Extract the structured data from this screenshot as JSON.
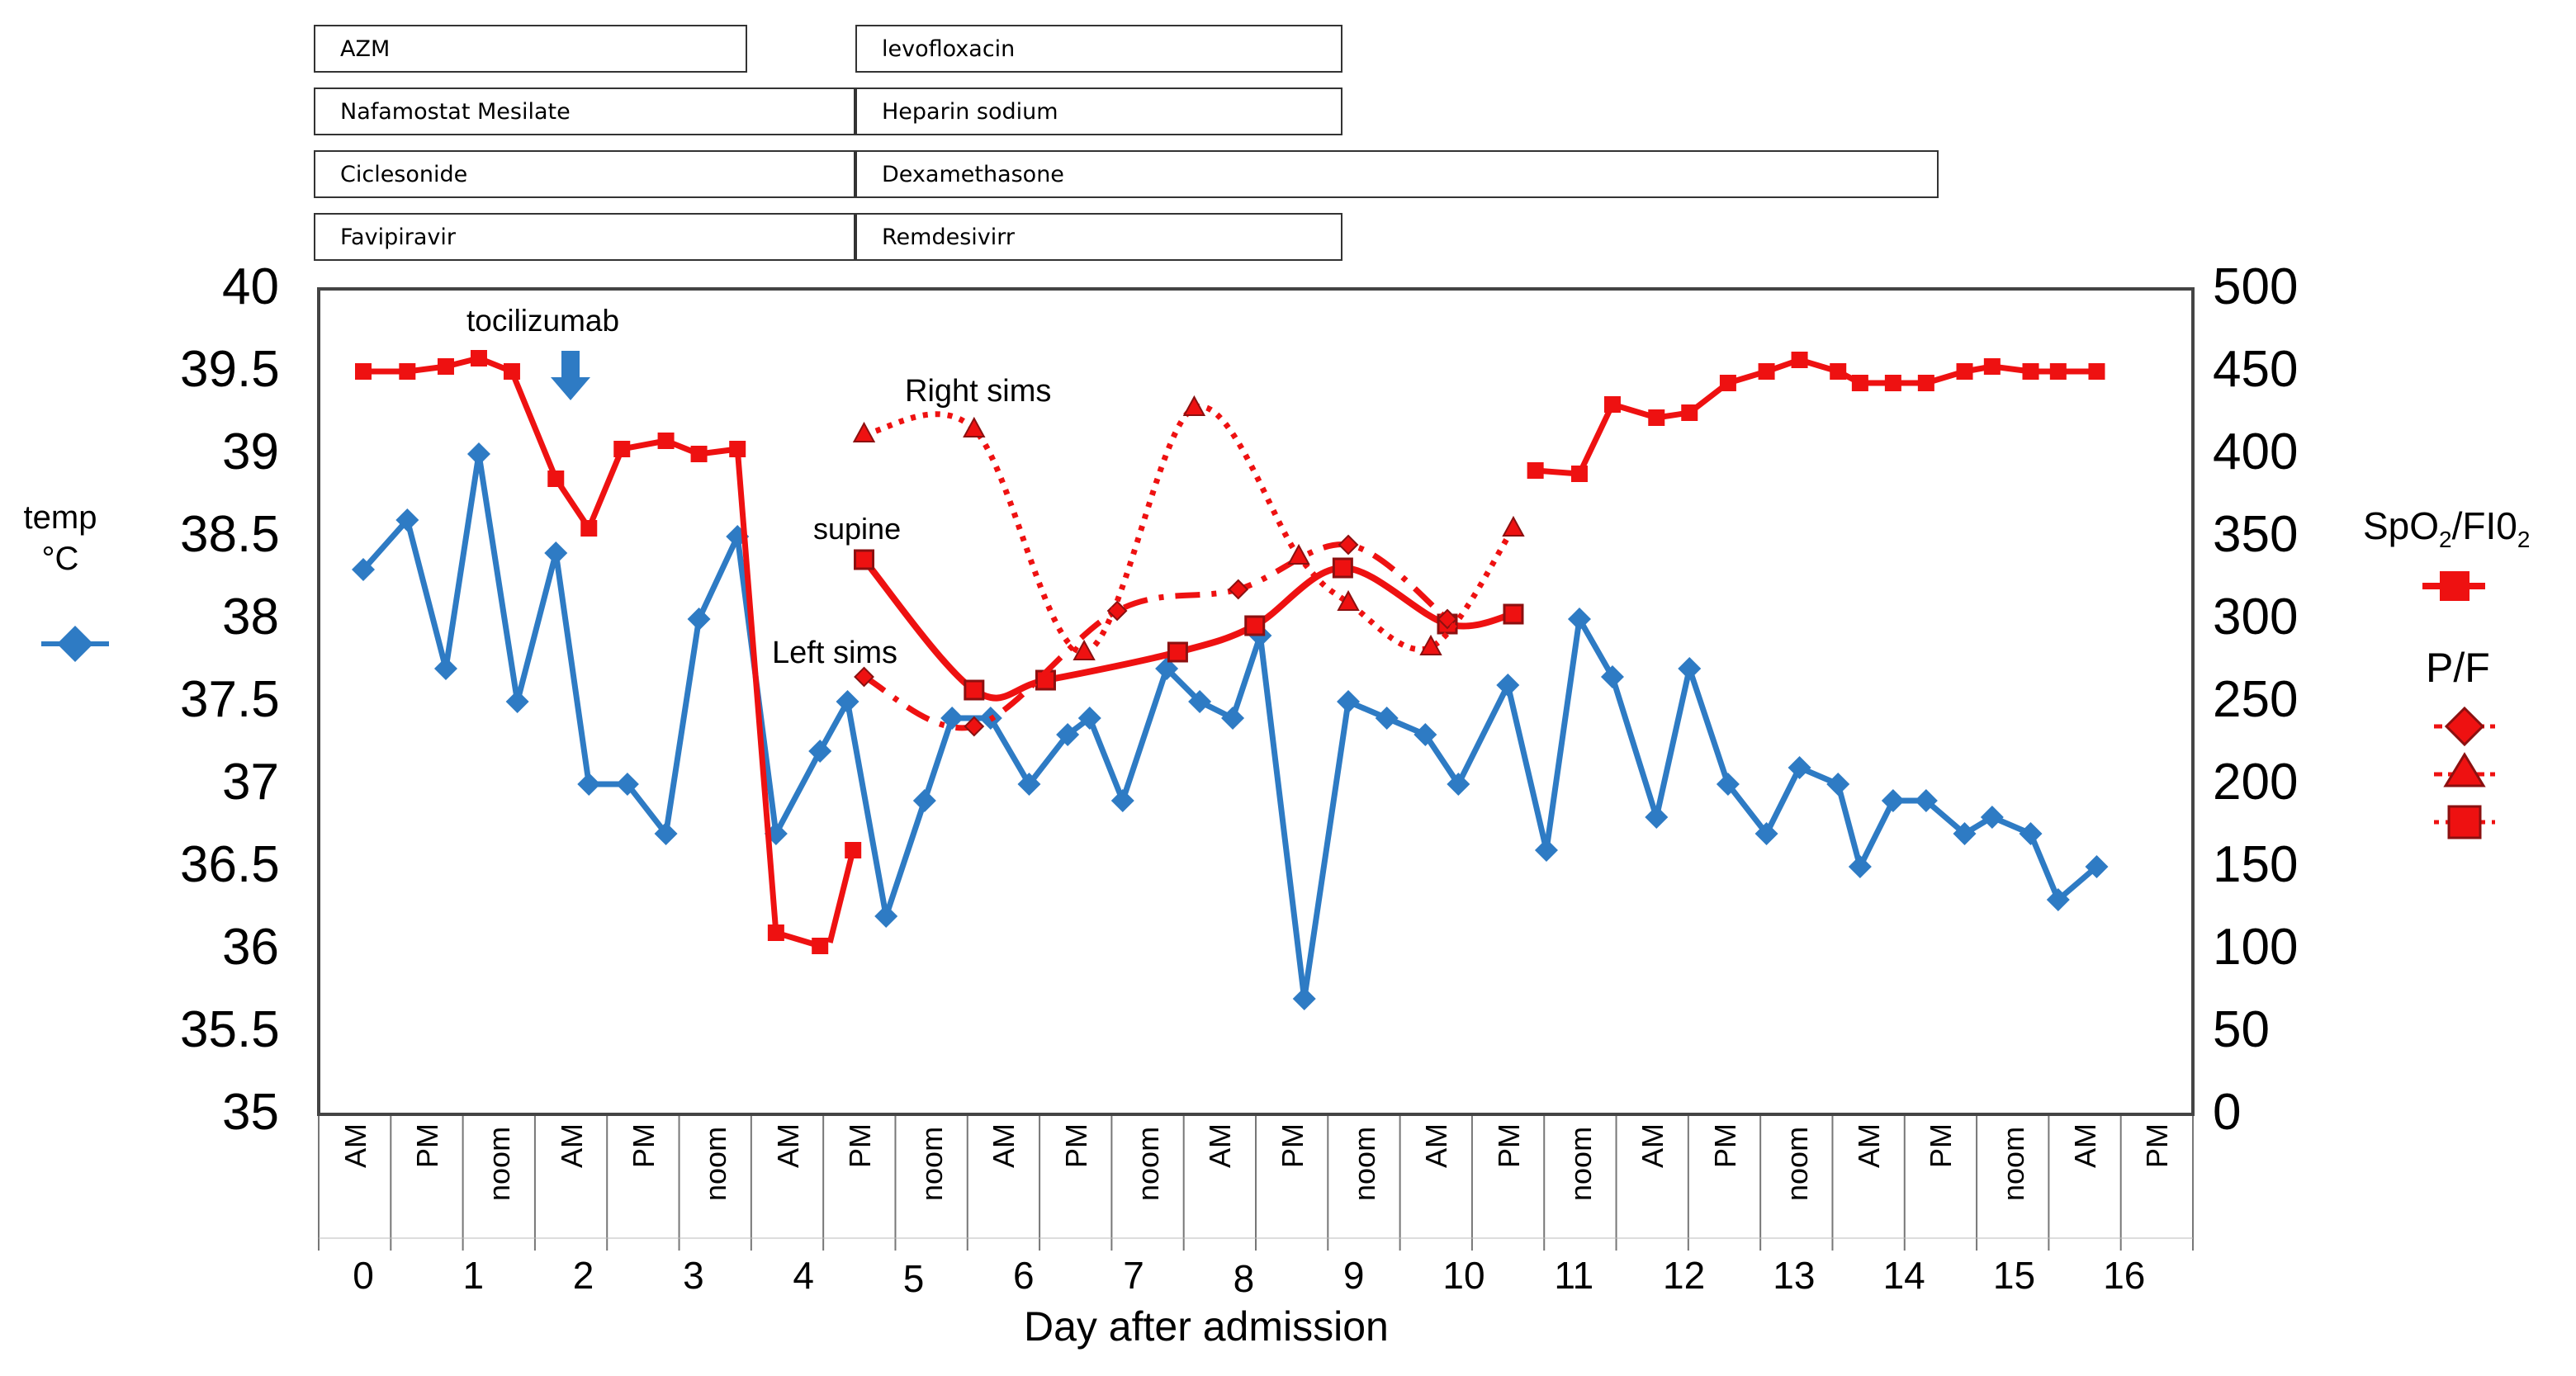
{
  "drug_boxes": [
    {
      "name": "AZM",
      "start": 0,
      "end": 4
    },
    {
      "name": "Nafamostat Mesilate",
      "start": 0,
      "end": 5
    },
    {
      "name": "Ciclesonide",
      "start": 0,
      "end": 5
    },
    {
      "name": "Favipiravir",
      "start": 0,
      "end": 5
    },
    {
      "name": "levofloxacin",
      "start": 5,
      "end": 9.5
    },
    {
      "name": "Heparin sodium",
      "start": 5,
      "end": 9.5
    },
    {
      "name": "Dexamethasone",
      "start": 5,
      "end": 15
    },
    {
      "name": "Remdesivirr",
      "start": 5,
      "end": 9.5
    }
  ],
  "annotations": {
    "tocilizumab": "tocilizumab",
    "right_sims": "Right sims",
    "supine": "supine",
    "left_sims": "Left sims"
  },
  "left_axis": {
    "label_line1": "temp",
    "label_line2": "°C",
    "ticks": [
      "40",
      "39.5",
      "39",
      "38.5",
      "38",
      "37.5",
      "37",
      "36.5",
      "36",
      "35.5",
      "35"
    ]
  },
  "right_axis": {
    "ticks": [
      "500",
      "450",
      "400",
      "350",
      "300",
      "250",
      "200",
      "150",
      "100",
      "50",
      "0"
    ]
  },
  "legend": {
    "spo2_label_main": "SpO",
    "spo2_sub1": "2",
    "spo2_mid": "/FI0",
    "spo2_sub2": "2",
    "pf_label": "P/F"
  },
  "x_axis": {
    "title": "Day  after admission",
    "days": [
      "0",
      "1",
      "2",
      "3",
      "4",
      "5",
      "6",
      "7",
      "8",
      "9",
      "10",
      "11",
      "12",
      "13",
      "14",
      "15",
      "16"
    ],
    "slots": [
      "AM",
      "PM",
      "noom",
      "AM",
      "PM",
      "noom",
      "AM",
      "PM",
      "noom",
      "AM",
      "PM",
      "noom",
      "AM",
      "PM",
      "noom",
      "AM",
      "PM",
      "noom",
      "AM",
      "PM",
      "noom",
      "AM",
      "PM",
      "noom",
      "AM",
      "PM"
    ]
  },
  "colors": {
    "temp": "#2e7bc4",
    "red": "#ee1111",
    "marker_edge": "#8b1010"
  },
  "chart_data": {
    "type": "line",
    "x_unit": "day after admission",
    "x_range": [
      -0.35,
      16.35
    ],
    "temperature": {
      "name": "temp °C",
      "axis": "left",
      "ylim": [
        35,
        40
      ],
      "x": [
        0,
        0.4,
        0.75,
        1.05,
        1.4,
        1.75,
        2.05,
        2.4,
        2.75,
        3.05,
        3.4,
        3.75,
        4.15,
        4.4,
        4.75,
        5.1,
        5.35,
        5.7,
        6.05,
        6.4,
        6.6,
        6.9,
        7.3,
        7.6,
        7.9,
        8.15,
        8.55,
        8.95,
        9.3,
        9.65,
        9.95,
        10.4,
        10.75,
        11.05,
        11.35,
        11.75,
        12.05,
        12.4,
        12.75,
        13.05,
        13.4,
        13.6,
        13.9,
        14.2,
        14.55,
        14.8,
        15.15,
        15.4,
        15.75
      ],
      "y": [
        38.3,
        38.6,
        37.7,
        39.0,
        37.5,
        38.4,
        37.0,
        37.0,
        36.7,
        38.0,
        38.5,
        36.7,
        37.2,
        37.5,
        36.2,
        36.9,
        37.4,
        37.4,
        37.0,
        37.3,
        37.4,
        36.9,
        37.7,
        37.5,
        37.4,
        37.9,
        35.7,
        37.5,
        37.4,
        37.3,
        37.0,
        37.6,
        36.6,
        38.0,
        37.65,
        36.8,
        37.7,
        37.0,
        36.7,
        37.1,
        37.0,
        36.5,
        36.9,
        36.9,
        36.7,
        36.8,
        36.7,
        36.3,
        36.5
      ]
    },
    "spo2_fio2": {
      "name": "SpO2/FIO2",
      "axis": "right",
      "ylim": [
        0,
        500
      ],
      "segments": [
        {
          "x": [
            0,
            0.4,
            0.75,
            1.05,
            1.35,
            1.75,
            2.05,
            2.35,
            2.75,
            3.05,
            3.4,
            3.75,
            4.15
          ],
          "y": [
            450,
            450,
            453,
            458,
            450,
            385,
            355,
            403,
            408,
            400,
            403,
            110,
            102
          ]
        },
        {
          "x": [
            4.45
          ],
          "y": [
            160
          ]
        },
        {
          "x": [
            10.65,
            11.05,
            11.35,
            11.75,
            12.05,
            12.4,
            12.75,
            13.05,
            13.4,
            13.6,
            13.9,
            14.2,
            14.55,
            14.8,
            15.15,
            15.4,
            15.75
          ],
          "y": [
            390,
            388,
            430,
            422,
            425,
            443,
            450,
            457,
            450,
            443,
            443,
            443,
            450,
            453,
            450,
            450,
            450
          ]
        }
      ]
    },
    "pf_supine": {
      "name": "P/F supine",
      "style": "solid",
      "marker": "square",
      "x": [
        4.55,
        5.55,
        6.2,
        7.4,
        8.1,
        8.9,
        9.85,
        10.45
      ],
      "y": [
        336,
        257,
        263,
        280,
        296,
        331,
        297,
        303
      ]
    },
    "pf_left_sims": {
      "name": "P/F Left sims",
      "style": "dashed",
      "marker": "diamond",
      "x": [
        4.55,
        5.55,
        6.85,
        7.95,
        8.95,
        9.85
      ],
      "y": [
        265,
        235,
        305,
        318,
        345,
        300
      ]
    },
    "pf_right_sims": {
      "name": "P/F Right sims",
      "style": "dotted",
      "marker": "triangle",
      "x": [
        4.55,
        5.55,
        6.55,
        7.55,
        8.5,
        8.95,
        9.7,
        10.45
      ],
      "y": [
        412,
        415,
        280,
        428,
        338,
        310,
        283,
        355
      ]
    }
  }
}
